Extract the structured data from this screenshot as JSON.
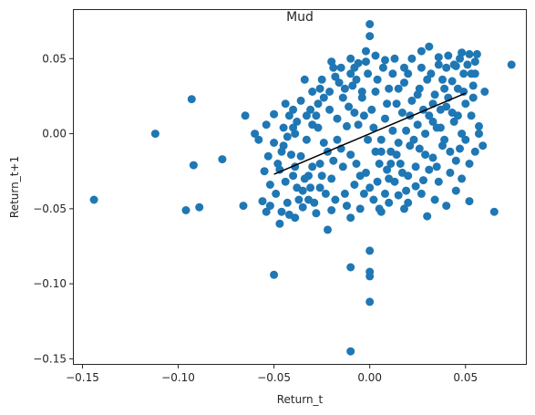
{
  "chart_data": {
    "type": "scatter",
    "title": "Mud",
    "xlabel": "Return_t",
    "ylabel": "Return_t+1",
    "xlim": [
      -0.155,
      0.082
    ],
    "ylim": [
      -0.154,
      0.083
    ],
    "grid": false,
    "x_ticks": [
      {
        "value": -0.15,
        "label": "−0.15"
      },
      {
        "value": -0.1,
        "label": "−0.10"
      },
      {
        "value": -0.05,
        "label": "−0.05"
      },
      {
        "value": 0.0,
        "label": "0.00"
      },
      {
        "value": 0.05,
        "label": "0.05"
      }
    ],
    "y_ticks": [
      {
        "value": 0.05,
        "label": "0.05"
      },
      {
        "value": 0.0,
        "label": "0.00"
      },
      {
        "value": -0.05,
        "label": "−0.05"
      },
      {
        "value": -0.1,
        "label": "−0.10"
      },
      {
        "value": -0.15,
        "label": "−0.15"
      }
    ],
    "point_color": "#1f77b4",
    "line_color": "#000000",
    "series": [
      {
        "kind": "scatter",
        "points": [
          [
            -0.144,
            -0.044
          ],
          [
            -0.112,
            0.0
          ],
          [
            -0.096,
            -0.051
          ],
          [
            -0.093,
            0.023
          ],
          [
            -0.092,
            -0.021
          ],
          [
            -0.089,
            -0.049
          ],
          [
            -0.077,
            -0.017
          ],
          [
            -0.066,
            -0.048
          ],
          [
            -0.065,
            0.012
          ],
          [
            -0.05,
            -0.094
          ],
          [
            -0.01,
            -0.145
          ],
          [
            -0.01,
            -0.089
          ],
          [
            0.0,
            -0.112
          ],
          [
            0.0,
            -0.095
          ],
          [
            0.0,
            -0.092
          ],
          [
            0.0,
            -0.078
          ],
          [
            0.0,
            0.073
          ],
          [
            0.0,
            0.065
          ],
          [
            0.03,
            -0.055
          ],
          [
            0.065,
            -0.052
          ],
          [
            0.074,
            0.046
          ],
          [
            0.06,
            0.028
          ],
          [
            0.057,
            0.005
          ],
          [
            0.055,
            -0.012
          ],
          [
            0.056,
            0.053
          ],
          [
            0.055,
            0.048
          ],
          [
            0.052,
            0.053
          ],
          [
            0.048,
            0.054
          ],
          [
            0.045,
            0.045
          ],
          [
            0.055,
            0.04
          ],
          [
            0.045,
            -0.038
          ],
          [
            0.048,
            -0.03
          ],
          [
            0.052,
            -0.045
          ],
          [
            0.04,
            -0.048
          ],
          [
            0.036,
            -0.032
          ],
          [
            0.035,
            -0.022
          ],
          [
            0.028,
            -0.031
          ],
          [
            0.02,
            -0.046
          ],
          [
            0.015,
            -0.041
          ],
          [
            0.01,
            -0.046
          ],
          [
            0.005,
            -0.05
          ],
          [
            -0.005,
            -0.05
          ],
          [
            -0.012,
            -0.048
          ],
          [
            -0.02,
            -0.051
          ],
          [
            -0.028,
            -0.053
          ],
          [
            -0.035,
            -0.049
          ],
          [
            -0.042,
            -0.054
          ],
          [
            -0.047,
            -0.06
          ],
          [
            -0.054,
            -0.052
          ],
          [
            -0.056,
            -0.045
          ],
          [
            -0.052,
            -0.034
          ],
          [
            -0.048,
            -0.02
          ],
          [
            -0.053,
            -0.015
          ],
          [
            -0.058,
            -0.004
          ],
          [
            -0.054,
            0.006
          ],
          [
            -0.05,
            0.013
          ],
          [
            -0.044,
            0.02
          ],
          [
            -0.04,
            0.004
          ],
          [
            -0.045,
            -0.008
          ],
          [
            -0.04,
            -0.028
          ],
          [
            -0.035,
            -0.038
          ],
          [
            -0.03,
            -0.022
          ],
          [
            -0.03,
            0.028
          ],
          [
            -0.028,
            0.012
          ],
          [
            -0.025,
            0.036
          ],
          [
            -0.02,
            0.048
          ],
          [
            -0.015,
            0.044
          ],
          [
            -0.01,
            0.05
          ],
          [
            -0.006,
            0.047
          ],
          [
            -0.002,
            0.055
          ],
          [
            0.003,
            0.052
          ],
          [
            0.008,
            0.049
          ],
          [
            0.013,
            0.05
          ],
          [
            0.018,
            0.044
          ],
          [
            0.022,
            0.05
          ],
          [
            0.027,
            0.055
          ],
          [
            0.031,
            0.058
          ],
          [
            0.036,
            0.051
          ],
          [
            0.04,
            0.044
          ],
          [
            0.043,
            0.035
          ],
          [
            0.04,
            0.018
          ],
          [
            0.044,
            0.008
          ],
          [
            0.048,
            0.0
          ],
          [
            0.038,
            -0.008
          ],
          [
            0.033,
            -0.016
          ],
          [
            0.026,
            -0.01
          ],
          [
            0.021,
            0.012
          ],
          [
            0.014,
            0.02
          ],
          [
            0.01,
            0.03
          ],
          [
            0.004,
            0.036
          ],
          [
            -0.004,
            0.024
          ],
          [
            -0.008,
            0.014
          ],
          [
            -0.012,
            0.005
          ],
          [
            -0.017,
            -0.004
          ],
          [
            -0.022,
            -0.012
          ],
          [
            -0.026,
            -0.02
          ],
          [
            -0.032,
            -0.028
          ],
          [
            -0.036,
            -0.015
          ],
          [
            -0.033,
            -0.004
          ],
          [
            -0.027,
            0.004
          ],
          [
            -0.021,
            0.016
          ],
          [
            -0.014,
            0.024
          ],
          [
            -0.009,
            0.032
          ],
          [
            -0.003,
            0.012
          ],
          [
            0.002,
            0.004
          ],
          [
            0.006,
            -0.004
          ],
          [
            0.011,
            -0.012
          ],
          [
            0.016,
            -0.02
          ],
          [
            0.02,
            -0.028
          ],
          [
            0.024,
            -0.035
          ],
          [
            0.029,
            0.0
          ],
          [
            0.033,
            0.008
          ],
          [
            0.037,
            0.016
          ],
          [
            0.041,
            0.024
          ],
          [
            0.046,
            0.03
          ],
          [
            0.05,
            0.02
          ],
          [
            0.053,
            0.012
          ],
          [
            0.05,
            -0.004
          ],
          [
            0.045,
            -0.018
          ],
          [
            0.042,
            -0.026
          ],
          [
            0.03,
            0.036
          ],
          [
            0.025,
            0.026
          ],
          [
            0.018,
            0.034
          ],
          [
            0.012,
            0.04
          ],
          [
            0.007,
            0.044
          ],
          [
            -0.001,
            0.04
          ],
          [
            -0.007,
            0.036
          ],
          [
            -0.013,
            0.03
          ],
          [
            -0.018,
            0.038
          ],
          [
            -0.024,
            0.024
          ],
          [
            -0.031,
            0.016
          ],
          [
            -0.038,
            0.008
          ],
          [
            -0.043,
            -0.002
          ],
          [
            -0.046,
            -0.012
          ],
          [
            -0.049,
            -0.04
          ],
          [
            -0.043,
            -0.046
          ],
          [
            -0.038,
            -0.036
          ],
          [
            -0.032,
            -0.044
          ],
          [
            -0.026,
            -0.036
          ],
          [
            -0.02,
            -0.03
          ],
          [
            -0.014,
            -0.022
          ],
          [
            -0.01,
            -0.014
          ],
          [
            -0.005,
            -0.028
          ],
          [
            0.0,
            -0.036
          ],
          [
            0.005,
            -0.02
          ],
          [
            0.01,
            -0.03
          ],
          [
            0.015,
            -0.006
          ],
          [
            0.019,
            0.002
          ],
          [
            0.023,
            -0.004
          ],
          [
            0.028,
            0.016
          ],
          [
            0.034,
            0.026
          ],
          [
            0.038,
            0.036
          ],
          [
            0.044,
            0.046
          ],
          [
            0.049,
            0.04
          ],
          [
            0.054,
            0.032
          ],
          [
            0.057,
            0.0
          ],
          [
            0.059,
            -0.008
          ],
          [
            0.052,
            -0.02
          ],
          [
            0.047,
            -0.01
          ],
          [
            0.039,
            -0.004
          ],
          [
            0.031,
            -0.024
          ],
          [
            0.027,
            -0.04
          ],
          [
            0.019,
            -0.038
          ],
          [
            0.013,
            -0.032
          ],
          [
            0.008,
            -0.04
          ],
          [
            0.002,
            -0.044
          ],
          [
            -0.003,
            -0.04
          ],
          [
            -0.008,
            -0.034
          ],
          [
            -0.013,
            -0.04
          ],
          [
            -0.018,
            -0.044
          ],
          [
            -0.023,
            -0.04
          ],
          [
            -0.029,
            -0.046
          ],
          [
            -0.034,
            -0.03
          ],
          [
            -0.039,
            -0.022
          ],
          [
            -0.044,
            -0.032
          ],
          [
            -0.055,
            -0.025
          ],
          [
            -0.06,
            0.0
          ],
          [
            -0.042,
            0.012
          ],
          [
            -0.036,
            0.022
          ],
          [
            -0.03,
            0.006
          ],
          [
            -0.024,
            -0.006
          ],
          [
            -0.017,
            0.01
          ],
          [
            -0.011,
            0.018
          ],
          [
            -0.006,
            0.006
          ],
          [
            -0.001,
            -0.004
          ],
          [
            0.003,
            -0.012
          ],
          [
            0.008,
            0.01
          ],
          [
            0.012,
            0.002
          ],
          [
            0.017,
            0.014
          ],
          [
            0.022,
            0.022
          ],
          [
            0.026,
            0.03
          ],
          [
            0.032,
            0.04
          ],
          [
            0.036,
            0.046
          ],
          [
            0.041,
            0.052
          ],
          [
            0.047,
            0.05
          ],
          [
            0.051,
            0.046
          ],
          [
            0.054,
            0.024
          ],
          [
            0.043,
            0.014
          ],
          [
            0.035,
            0.004
          ],
          [
            0.029,
            -0.014
          ],
          [
            0.024,
            -0.022
          ],
          [
            0.017,
            -0.026
          ],
          [
            0.011,
            -0.02
          ],
          [
            0.006,
            -0.012
          ],
          [
            0.001,
            0.016
          ],
          [
            -0.004,
            0.028
          ],
          [
            -0.01,
            0.04
          ],
          [
            -0.016,
            0.034
          ],
          [
            -0.021,
            0.028
          ],
          [
            -0.027,
            0.02
          ],
          [
            -0.033,
            0.012
          ],
          [
            -0.039,
            0.0
          ],
          [
            -0.045,
            0.004
          ],
          [
            -0.05,
            -0.006
          ],
          [
            -0.041,
            -0.014
          ],
          [
            -0.037,
            -0.044
          ],
          [
            -0.031,
            -0.036
          ],
          [
            -0.025,
            -0.028
          ],
          [
            -0.019,
            -0.018
          ],
          [
            -0.015,
            -0.01
          ],
          [
            -0.007,
            -0.02
          ],
          [
            -0.002,
            -0.026
          ],
          [
            0.004,
            -0.032
          ],
          [
            0.009,
            -0.024
          ],
          [
            0.014,
            -0.014
          ],
          [
            0.021,
            -0.008
          ],
          [
            0.025,
            0.006
          ],
          [
            0.031,
            0.012
          ],
          [
            0.037,
            0.004
          ],
          [
            0.042,
            -0.012
          ],
          [
            0.046,
            0.012
          ],
          [
            0.049,
            0.028
          ],
          [
            0.053,
            0.04
          ],
          [
            0.039,
            0.03
          ],
          [
            0.033,
            0.02
          ],
          [
            0.027,
            0.044
          ],
          [
            0.02,
            0.04
          ],
          [
            0.015,
            0.03
          ],
          [
            0.009,
            0.02
          ],
          [
            0.003,
            0.028
          ],
          [
            -0.002,
            0.048
          ],
          [
            -0.008,
            0.044
          ],
          [
            -0.019,
            0.044
          ],
          [
            -0.026,
            0.03
          ],
          [
            -0.034,
            0.036
          ],
          [
            -0.04,
            0.016
          ],
          [
            -0.047,
            -0.024
          ],
          [
            -0.052,
            -0.048
          ],
          [
            -0.046,
            -0.052
          ],
          [
            -0.039,
            -0.056
          ],
          [
            -0.022,
            -0.064
          ],
          [
            -0.01,
            -0.056
          ],
          [
            0.006,
            -0.052
          ],
          [
            0.018,
            -0.05
          ],
          [
            0.034,
            -0.044
          ]
        ]
      },
      {
        "kind": "fit_line",
        "points": [
          [
            -0.05,
            -0.027
          ],
          [
            0.05,
            0.027
          ]
        ]
      }
    ]
  }
}
